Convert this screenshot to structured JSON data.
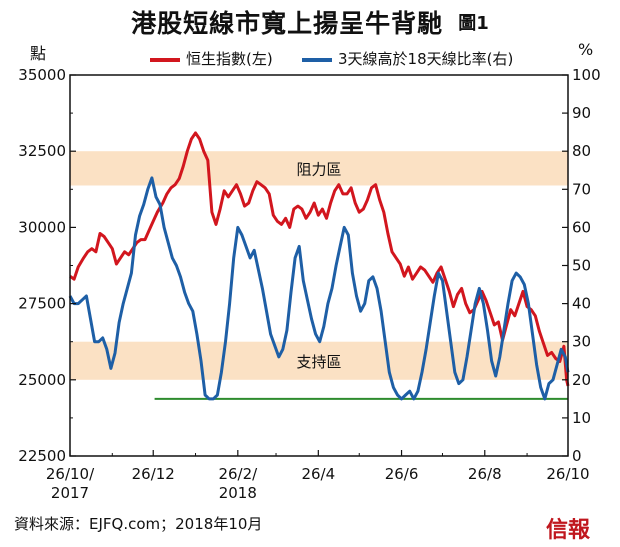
{
  "header": {
    "title": "港股短線市寬上揚呈牛背馳",
    "chart_no": "圖1",
    "unit_left": "點",
    "unit_right": "%"
  },
  "legend": [
    {
      "label": "恒生指數(左)",
      "color": "#d2161e"
    },
    {
      "label": "3天線高於18天線比率(右)",
      "color": "#1e5fa6"
    }
  ],
  "footer": {
    "source": "資料來源：EJFQ.com；2018年10月",
    "logo": "信報"
  },
  "chart_data": {
    "type": "line",
    "x_ticks": [
      {
        "x": "2017-10-26",
        "label": "26/10/",
        "label2": "2017"
      },
      {
        "x": "2017-12-26",
        "label": "26/12"
      },
      {
        "x": "2018-02-26",
        "label": "26/2/",
        "label2": "2018"
      },
      {
        "x": "2018-04-26",
        "label": "26/4"
      },
      {
        "x": "2018-06-26",
        "label": "26/6"
      },
      {
        "x": "2018-08-26",
        "label": "26/8"
      },
      {
        "x": "2018-10-26",
        "label": "26/10"
      }
    ],
    "x_range": [
      "2017-10-26",
      "2018-10-26"
    ],
    "y_left": {
      "label": "點",
      "range": [
        22500,
        35000
      ],
      "ticks": [
        22500,
        25000,
        27500,
        30000,
        32500,
        35000
      ]
    },
    "y_right": {
      "label": "%",
      "range": [
        0,
        100
      ],
      "ticks": [
        0,
        10,
        20,
        30,
        40,
        50,
        60,
        70,
        80,
        90,
        100
      ]
    },
    "grid": false,
    "bands": [
      {
        "label": "阻力區",
        "axis": "right",
        "from": 71,
        "to": 80,
        "color": "#fbe1c4"
      },
      {
        "label": "支持區",
        "axis": "right",
        "from": 20,
        "to": 30,
        "color": "#fbe1c4"
      }
    ],
    "hline": {
      "axis": "right",
      "value": 15,
      "from": "2017-12-27",
      "to": "2018-10-26",
      "color": "#2e8b2e"
    },
    "series": [
      {
        "name": "恒生指數(左)",
        "axis": "left",
        "color": "#d2161e",
        "points": [
          [
            "2017-10-26",
            28400
          ],
          [
            "2017-10-29",
            28300
          ],
          [
            "2017-11-01",
            28700
          ],
          [
            "2017-11-05",
            29000
          ],
          [
            "2017-11-08",
            29200
          ],
          [
            "2017-11-11",
            29300
          ],
          [
            "2017-11-14",
            29200
          ],
          [
            "2017-11-17",
            29800
          ],
          [
            "2017-11-20",
            29700
          ],
          [
            "2017-11-23",
            29500
          ],
          [
            "2017-11-26",
            29300
          ],
          [
            "2017-11-29",
            28800
          ],
          [
            "2017-12-02",
            29000
          ],
          [
            "2017-12-05",
            29200
          ],
          [
            "2017-12-08",
            29100
          ],
          [
            "2017-12-11",
            29300
          ],
          [
            "2017-12-14",
            29500
          ],
          [
            "2017-12-17",
            29600
          ],
          [
            "2017-12-20",
            29600
          ],
          [
            "2017-12-23",
            29900
          ],
          [
            "2017-12-26",
            30200
          ],
          [
            "2017-12-29",
            30500
          ],
          [
            "2018-01-02",
            30800
          ],
          [
            "2018-01-05",
            31100
          ],
          [
            "2018-01-08",
            31300
          ],
          [
            "2018-01-11",
            31400
          ],
          [
            "2018-01-14",
            31600
          ],
          [
            "2018-01-17",
            32000
          ],
          [
            "2018-01-20",
            32500
          ],
          [
            "2018-01-23",
            32900
          ],
          [
            "2018-01-26",
            33100
          ],
          [
            "2018-01-29",
            32900
          ],
          [
            "2018-02-01",
            32500
          ],
          [
            "2018-02-04",
            32200
          ],
          [
            "2018-02-07",
            30500
          ],
          [
            "2018-02-10",
            30100
          ],
          [
            "2018-02-13",
            30600
          ],
          [
            "2018-02-16",
            31200
          ],
          [
            "2018-02-19",
            31000
          ],
          [
            "2018-02-22",
            31200
          ],
          [
            "2018-02-25",
            31400
          ],
          [
            "2018-02-28",
            31100
          ],
          [
            "2018-03-03",
            30700
          ],
          [
            "2018-03-06",
            30800
          ],
          [
            "2018-03-09",
            31200
          ],
          [
            "2018-03-12",
            31500
          ],
          [
            "2018-03-15",
            31400
          ],
          [
            "2018-03-18",
            31300
          ],
          [
            "2018-03-21",
            31100
          ],
          [
            "2018-03-24",
            30400
          ],
          [
            "2018-03-27",
            30200
          ],
          [
            "2018-03-30",
            30100
          ],
          [
            "2018-04-02",
            30300
          ],
          [
            "2018-04-05",
            30000
          ],
          [
            "2018-04-08",
            30600
          ],
          [
            "2018-04-11",
            30700
          ],
          [
            "2018-04-14",
            30600
          ],
          [
            "2018-04-17",
            30300
          ],
          [
            "2018-04-20",
            30500
          ],
          [
            "2018-04-23",
            30800
          ],
          [
            "2018-04-26",
            30400
          ],
          [
            "2018-04-29",
            30600
          ],
          [
            "2018-05-02",
            30300
          ],
          [
            "2018-05-05",
            30800
          ],
          [
            "2018-05-08",
            31200
          ],
          [
            "2018-05-11",
            31400
          ],
          [
            "2018-05-14",
            31100
          ],
          [
            "2018-05-17",
            31100
          ],
          [
            "2018-05-20",
            31300
          ],
          [
            "2018-05-23",
            30800
          ],
          [
            "2018-05-26",
            30500
          ],
          [
            "2018-05-29",
            30600
          ],
          [
            "2018-06-01",
            30900
          ],
          [
            "2018-06-04",
            31300
          ],
          [
            "2018-06-07",
            31400
          ],
          [
            "2018-06-10",
            30900
          ],
          [
            "2018-06-13",
            30500
          ],
          [
            "2018-06-16",
            29800
          ],
          [
            "2018-06-19",
            29200
          ],
          [
            "2018-06-22",
            29000
          ],
          [
            "2018-06-25",
            28800
          ],
          [
            "2018-06-28",
            28400
          ],
          [
            "2018-07-01",
            28700
          ],
          [
            "2018-07-04",
            28300
          ],
          [
            "2018-07-07",
            28500
          ],
          [
            "2018-07-10",
            28700
          ],
          [
            "2018-07-13",
            28600
          ],
          [
            "2018-07-16",
            28400
          ],
          [
            "2018-07-19",
            28200
          ],
          [
            "2018-07-22",
            28500
          ],
          [
            "2018-07-25",
            28700
          ],
          [
            "2018-07-28",
            28300
          ],
          [
            "2018-07-31",
            27900
          ],
          [
            "2018-08-03",
            27400
          ],
          [
            "2018-08-06",
            27800
          ],
          [
            "2018-08-09",
            28000
          ],
          [
            "2018-08-12",
            27500
          ],
          [
            "2018-08-15",
            27200
          ],
          [
            "2018-08-18",
            27300
          ],
          [
            "2018-08-21",
            27600
          ],
          [
            "2018-08-24",
            27900
          ],
          [
            "2018-08-27",
            27600
          ],
          [
            "2018-08-30",
            27200
          ],
          [
            "2018-09-02",
            26800
          ],
          [
            "2018-09-05",
            26900
          ],
          [
            "2018-09-08",
            26300
          ],
          [
            "2018-09-11",
            26800
          ],
          [
            "2018-09-14",
            27300
          ],
          [
            "2018-09-17",
            27100
          ],
          [
            "2018-09-20",
            27500
          ],
          [
            "2018-09-23",
            27900
          ],
          [
            "2018-09-26",
            27400
          ],
          [
            "2018-09-29",
            27300
          ],
          [
            "2018-10-02",
            27100
          ],
          [
            "2018-10-05",
            26600
          ],
          [
            "2018-10-08",
            26200
          ],
          [
            "2018-10-11",
            25800
          ],
          [
            "2018-10-14",
            25900
          ],
          [
            "2018-10-17",
            25700
          ],
          [
            "2018-10-20",
            25600
          ],
          [
            "2018-10-23",
            26100
          ],
          [
            "2018-10-25",
            25000
          ],
          [
            "2018-10-26",
            24800
          ]
        ]
      },
      {
        "name": "3天線高於18天線比率(右)",
        "axis": "right",
        "color": "#1e5fa6",
        "points": [
          [
            "2017-10-26",
            42
          ],
          [
            "2017-10-29",
            40
          ],
          [
            "2017-11-01",
            40
          ],
          [
            "2017-11-04",
            41
          ],
          [
            "2017-11-07",
            42
          ],
          [
            "2017-11-10",
            36
          ],
          [
            "2017-11-13",
            30
          ],
          [
            "2017-11-16",
            30
          ],
          [
            "2017-11-19",
            31
          ],
          [
            "2017-11-22",
            28
          ],
          [
            "2017-11-25",
            23
          ],
          [
            "2017-11-28",
            27
          ],
          [
            "2017-12-01",
            35
          ],
          [
            "2017-12-04",
            40
          ],
          [
            "2017-12-07",
            44
          ],
          [
            "2017-12-10",
            48
          ],
          [
            "2017-12-13",
            58
          ],
          [
            "2017-12-16",
            63
          ],
          [
            "2017-12-19",
            66
          ],
          [
            "2017-12-22",
            70
          ],
          [
            "2017-12-25",
            73
          ],
          [
            "2017-12-28",
            68
          ],
          [
            "2017-12-31",
            66
          ],
          [
            "2018-01-03",
            60
          ],
          [
            "2018-01-06",
            56
          ],
          [
            "2018-01-09",
            52
          ],
          [
            "2018-01-12",
            50
          ],
          [
            "2018-01-15",
            47
          ],
          [
            "2018-01-18",
            43
          ],
          [
            "2018-01-21",
            40
          ],
          [
            "2018-01-24",
            38
          ],
          [
            "2018-01-27",
            32
          ],
          [
            "2018-01-30",
            25
          ],
          [
            "2018-02-02",
            16
          ],
          [
            "2018-02-05",
            15
          ],
          [
            "2018-02-08",
            15
          ],
          [
            "2018-02-11",
            16
          ],
          [
            "2018-02-14",
            22
          ],
          [
            "2018-02-17",
            30
          ],
          [
            "2018-02-20",
            40
          ],
          [
            "2018-02-23",
            52
          ],
          [
            "2018-02-26",
            60
          ],
          [
            "2018-03-01",
            58
          ],
          [
            "2018-03-04",
            55
          ],
          [
            "2018-03-07",
            52
          ],
          [
            "2018-03-10",
            54
          ],
          [
            "2018-03-13",
            49
          ],
          [
            "2018-03-16",
            44
          ],
          [
            "2018-03-19",
            38
          ],
          [
            "2018-03-22",
            32
          ],
          [
            "2018-03-25",
            29
          ],
          [
            "2018-03-28",
            26
          ],
          [
            "2018-03-31",
            28
          ],
          [
            "2018-04-03",
            33
          ],
          [
            "2018-04-06",
            43
          ],
          [
            "2018-04-09",
            52
          ],
          [
            "2018-04-12",
            55
          ],
          [
            "2018-04-15",
            46
          ],
          [
            "2018-04-18",
            41
          ],
          [
            "2018-04-21",
            36
          ],
          [
            "2018-04-24",
            32
          ],
          [
            "2018-04-27",
            30
          ],
          [
            "2018-04-30",
            34
          ],
          [
            "2018-05-03",
            40
          ],
          [
            "2018-05-06",
            44
          ],
          [
            "2018-05-09",
            50
          ],
          [
            "2018-05-12",
            55
          ],
          [
            "2018-05-15",
            60
          ],
          [
            "2018-05-18",
            58
          ],
          [
            "2018-05-21",
            48
          ],
          [
            "2018-05-24",
            42
          ],
          [
            "2018-05-27",
            38
          ],
          [
            "2018-05-30",
            40
          ],
          [
            "2018-06-02",
            46
          ],
          [
            "2018-06-05",
            47
          ],
          [
            "2018-06-08",
            44
          ],
          [
            "2018-06-11",
            38
          ],
          [
            "2018-06-14",
            30
          ],
          [
            "2018-06-17",
            22
          ],
          [
            "2018-06-20",
            18
          ],
          [
            "2018-06-23",
            16
          ],
          [
            "2018-06-26",
            15
          ],
          [
            "2018-06-29",
            16
          ],
          [
            "2018-07-02",
            17
          ],
          [
            "2018-07-05",
            15
          ],
          [
            "2018-07-08",
            17
          ],
          [
            "2018-07-11",
            22
          ],
          [
            "2018-07-14",
            28
          ],
          [
            "2018-07-17",
            35
          ],
          [
            "2018-07-20",
            42
          ],
          [
            "2018-07-23",
            48
          ],
          [
            "2018-07-26",
            46
          ],
          [
            "2018-07-29",
            38
          ],
          [
            "2018-08-01",
            30
          ],
          [
            "2018-08-04",
            22
          ],
          [
            "2018-08-07",
            19
          ],
          [
            "2018-08-10",
            20
          ],
          [
            "2018-08-13",
            26
          ],
          [
            "2018-08-16",
            33
          ],
          [
            "2018-08-19",
            40
          ],
          [
            "2018-08-22",
            44
          ],
          [
            "2018-08-25",
            40
          ],
          [
            "2018-08-28",
            33
          ],
          [
            "2018-08-31",
            25
          ],
          [
            "2018-09-03",
            21
          ],
          [
            "2018-09-06",
            26
          ],
          [
            "2018-09-09",
            33
          ],
          [
            "2018-09-12",
            40
          ],
          [
            "2018-09-15",
            46
          ],
          [
            "2018-09-18",
            48
          ],
          [
            "2018-09-21",
            47
          ],
          [
            "2018-09-24",
            45
          ],
          [
            "2018-09-27",
            40
          ],
          [
            "2018-09-30",
            32
          ],
          [
            "2018-10-03",
            24
          ],
          [
            "2018-10-06",
            18
          ],
          [
            "2018-10-09",
            15
          ],
          [
            "2018-10-12",
            19
          ],
          [
            "2018-10-15",
            20
          ],
          [
            "2018-10-18",
            24
          ],
          [
            "2018-10-21",
            28
          ],
          [
            "2018-10-24",
            26
          ],
          [
            "2018-10-26",
            22
          ]
        ]
      }
    ]
  }
}
